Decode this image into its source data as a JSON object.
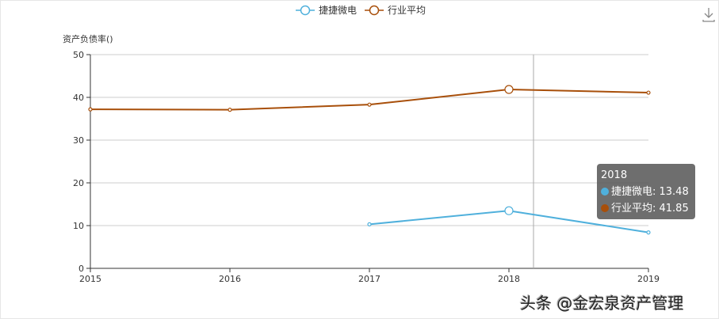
{
  "chart_data": {
    "type": "line",
    "ylabel": "资产负债率()",
    "categories": [
      "2015",
      "2016",
      "2017",
      "2018",
      "2019"
    ],
    "ylim": [
      0,
      50
    ],
    "yticks": [
      0,
      10,
      20,
      30,
      40,
      50
    ],
    "grid": true,
    "legend_placement": "top-center",
    "series": [
      {
        "name": "捷捷微电",
        "color": "#4fb0dc",
        "values": [
          null,
          null,
          10.3,
          13.48,
          8.4
        ]
      },
      {
        "name": "行业平均",
        "color": "#a84f0a",
        "values": [
          37.2,
          37.1,
          38.3,
          41.85,
          41.1
        ]
      }
    ],
    "tooltip": {
      "title": "2018",
      "rows": [
        "捷捷微电: 13.48",
        "行业平均: 41.85"
      ]
    }
  },
  "toolbar": {
    "download_icon": "download-icon"
  },
  "watermark": "头条 @金宏泉资产管理"
}
